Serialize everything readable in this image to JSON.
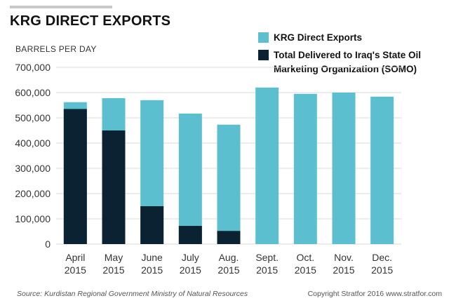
{
  "title": "KRG DIRECT EXPORTS",
  "units_label": "BARRELS PER DAY",
  "legend": [
    {
      "label": "KRG Direct Exports",
      "color": "#5bbfcf"
    },
    {
      "label": "Total Delivered to Iraq's State Oil Marketing Organization (SOMO)",
      "color": "#0b2233"
    }
  ],
  "footer": {
    "source": "Source: Kurdistan Regional Government Ministry of Natural Resources",
    "copyright": "Copyright Stratfor 2016  www.stratfor.com"
  },
  "chart_data": {
    "type": "bar",
    "stacking": "overlay",
    "title": "KRG DIRECT EXPORTS",
    "ylabel": "BARRELS PER DAY",
    "xlabel": "",
    "categories": [
      [
        "April",
        "2015"
      ],
      [
        "May",
        "2015"
      ],
      [
        "June",
        "2015"
      ],
      [
        "July",
        "2015"
      ],
      [
        "Aug.",
        "2015"
      ],
      [
        "Sept.",
        "2015"
      ],
      [
        "Oct.",
        "2015"
      ],
      [
        "Nov.",
        "2015"
      ],
      [
        "Dec.",
        "2015"
      ]
    ],
    "series": [
      {
        "name": "KRG Direct Exports",
        "color": "#5bbfcf",
        "values": [
          562000,
          578000,
          570000,
          517000,
          473000,
          620000,
          595000,
          600000,
          584000
        ]
      },
      {
        "name": "Total Delivered to Iraq's State Oil Marketing Organization (SOMO)",
        "color": "#0b2233",
        "values": [
          535000,
          450000,
          150000,
          72000,
          52000,
          null,
          null,
          null,
          null
        ]
      }
    ],
    "ylim": [
      0,
      700000
    ],
    "yticks": [
      0,
      100000,
      200000,
      300000,
      400000,
      500000,
      600000,
      700000
    ],
    "ytick_labels": [
      "0",
      "100,000",
      "200,000",
      "300,000",
      "400,000",
      "500,000",
      "600,000",
      "700,000"
    ],
    "grid": true,
    "legend_position": "top-right"
  }
}
